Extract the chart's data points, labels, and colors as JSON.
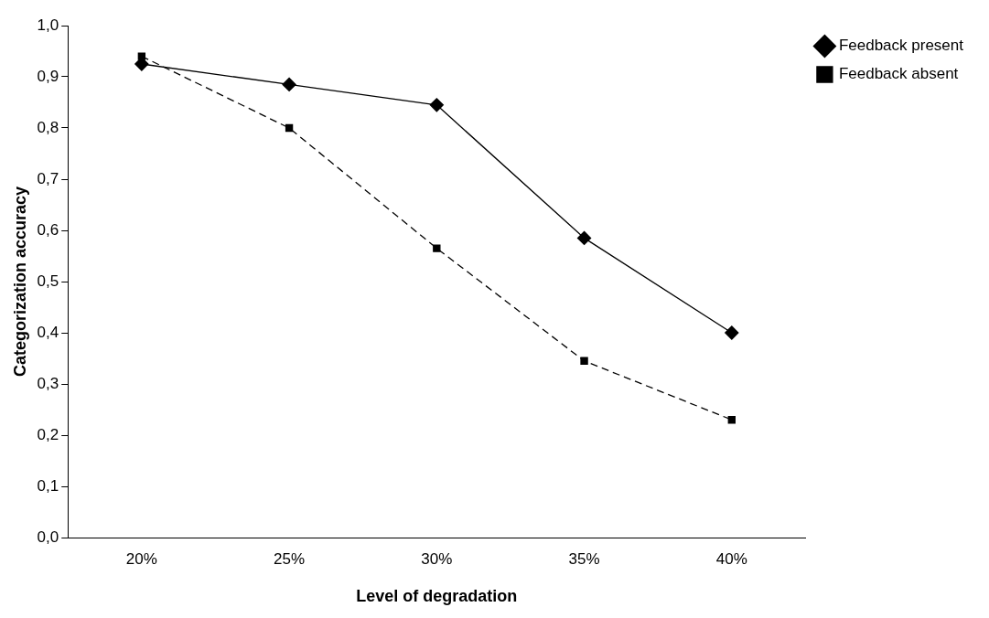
{
  "chart_data": {
    "type": "line",
    "xlabel": "Level of degradation",
    "ylabel": "Categorization accuracy",
    "categories": [
      "20%",
      "25%",
      "30%",
      "35%",
      "40%"
    ],
    "series": [
      {
        "name": "Feedback present",
        "color": "#000000",
        "values": [
          0.925,
          0.885,
          0.845,
          0.585,
          0.4
        ],
        "marker": "diamond",
        "line_style": "solid"
      },
      {
        "name": "Feedback absent",
        "color": "#000000",
        "values": [
          0.94,
          0.8,
          0.565,
          0.345,
          0.23
        ],
        "marker": "square",
        "line_style": "dashed"
      }
    ],
    "ylim": [
      0,
      1
    ],
    "yticks": [
      {
        "value": 0,
        "label": "0,0"
      },
      {
        "value": 0.1,
        "label": "0,1"
      },
      {
        "value": 0.2,
        "label": "0,2"
      },
      {
        "value": 0.3,
        "label": "0,3"
      },
      {
        "value": 0.4,
        "label": "0,4"
      },
      {
        "value": 0.5,
        "label": "0,5"
      },
      {
        "value": 0.6,
        "label": "0,6"
      },
      {
        "value": 0.7,
        "label": "0,7"
      },
      {
        "value": 0.8,
        "label": "0,8"
      },
      {
        "value": 0.9,
        "label": "0,9"
      },
      {
        "value": 1,
        "label": "1,0"
      }
    ],
    "grid": false,
    "legend": "top right"
  }
}
